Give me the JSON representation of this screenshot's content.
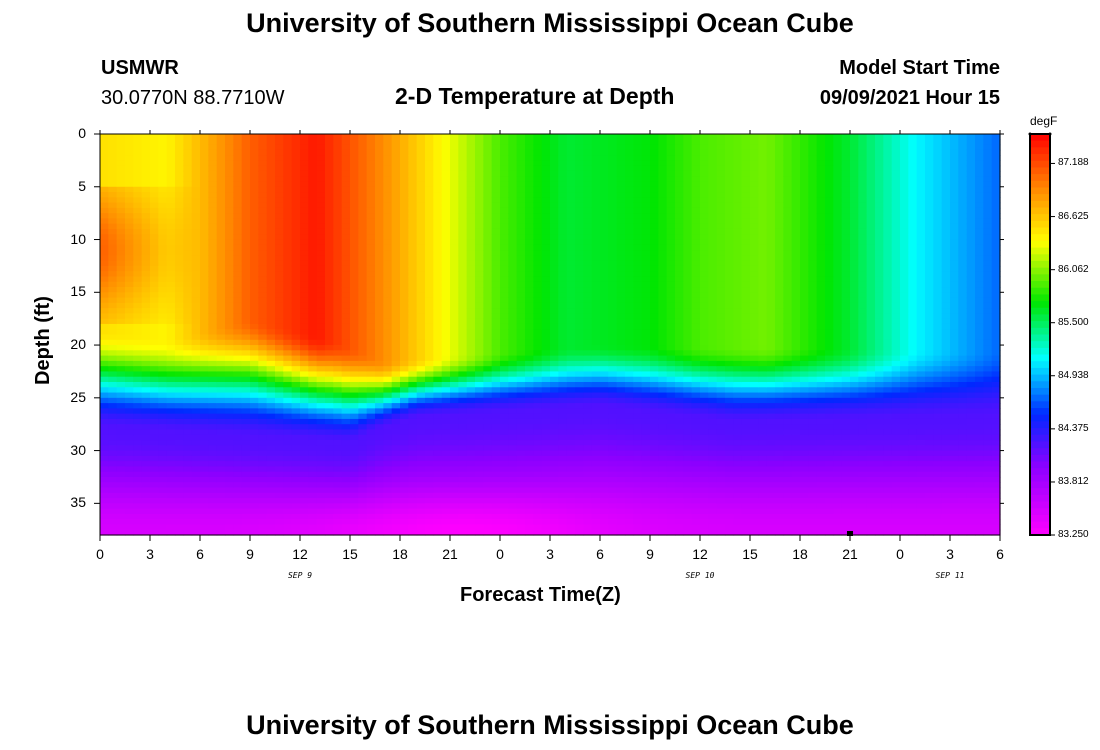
{
  "header": {
    "title": "University of Southern Mississippi Ocean Cube",
    "station": "USMWR",
    "coords": "30.0770N  88.7710W",
    "subtitle": "2-D Temperature at Depth",
    "model_label": "Model Start Time",
    "model_time": "09/09/2021 Hour 15"
  },
  "footer": {
    "title": "University of Southern Mississippi Ocean Cube"
  },
  "chart_data": {
    "type": "heatmap",
    "title": "2-D Temperature at Depth",
    "xlabel": "Forecast Time(Z)",
    "ylabel": "Depth (ft)",
    "x_tick_labels": [
      "0",
      "3",
      "6",
      "9",
      "12",
      "15",
      "18",
      "21",
      "0",
      "3",
      "6",
      "9",
      "12",
      "15",
      "18",
      "21",
      "0",
      "3",
      "6"
    ],
    "x_range_hours": [
      0,
      54
    ],
    "date_labels": [
      {
        "label": "SEP 9",
        "hour": 12
      },
      {
        "label": "SEP 10",
        "hour": 36
      },
      {
        "label": "SEP 11",
        "hour": 51
      }
    ],
    "y_tick_labels": [
      "0",
      "5",
      "10",
      "15",
      "20",
      "25",
      "30",
      "35"
    ],
    "y_range_ft": [
      0,
      38
    ],
    "colorbar": {
      "units": "degF",
      "min": 83.25,
      "max": 87.5,
      "tick_labels": [
        "87.188",
        "86.625",
        "86.062",
        "85.500",
        "84.938",
        "84.375",
        "83.812",
        "83.250"
      ],
      "tick_values": [
        87.188,
        86.625,
        86.062,
        85.5,
        84.938,
        84.375,
        83.812,
        83.25
      ]
    },
    "marker": {
      "hour": 45,
      "depth_ft": 38
    },
    "temperature_field": {
      "description": "upper layer warm (86-87.5 F) on SEP 9 cooling to ~85.8-86 F later; thermocline at ~22-30 ft; bottom ~83.3-83.8 F",
      "surface_profile": [
        {
          "hour": 0,
          "value": 86.5
        },
        {
          "hour": 4,
          "value": 86.4
        },
        {
          "hour": 9,
          "value": 87.1
        },
        {
          "hour": 13,
          "value": 87.4
        },
        {
          "hour": 17,
          "value": 86.9
        },
        {
          "hour": 21,
          "value": 86.3
        },
        {
          "hour": 24,
          "value": 85.9
        },
        {
          "hour": 28,
          "value": 85.6
        },
        {
          "hour": 33,
          "value": 85.7
        },
        {
          "hour": 36,
          "value": 85.9
        },
        {
          "hour": 40,
          "value": 86.0
        },
        {
          "hour": 45,
          "value": 85.6
        },
        {
          "hour": 49,
          "value": 85.1
        },
        {
          "hour": 54,
          "value": 84.7
        }
      ],
      "mixed_layer_depth_ft": [
        {
          "hour": 0,
          "value": 20
        },
        {
          "hour": 4,
          "value": 21
        },
        {
          "hour": 9,
          "value": 19
        },
        {
          "hour": 14,
          "value": 21
        },
        {
          "hour": 17,
          "value": 23
        },
        {
          "hour": 21,
          "value": 22.5
        },
        {
          "hour": 30,
          "value": 21.5
        },
        {
          "hour": 54,
          "value": 22
        }
      ],
      "thermocline_depth_ft": [
        {
          "hour": 0,
          "value": 28
        },
        {
          "hour": 15,
          "value": 29.5
        },
        {
          "hour": 17,
          "value": 28
        },
        {
          "hour": 19,
          "value": 27
        },
        {
          "hour": 30,
          "value": 26
        },
        {
          "hour": 38,
          "value": 27.5
        },
        {
          "hour": 54,
          "value": 27
        }
      ],
      "bottom_temp_degF": 83.5
    }
  }
}
